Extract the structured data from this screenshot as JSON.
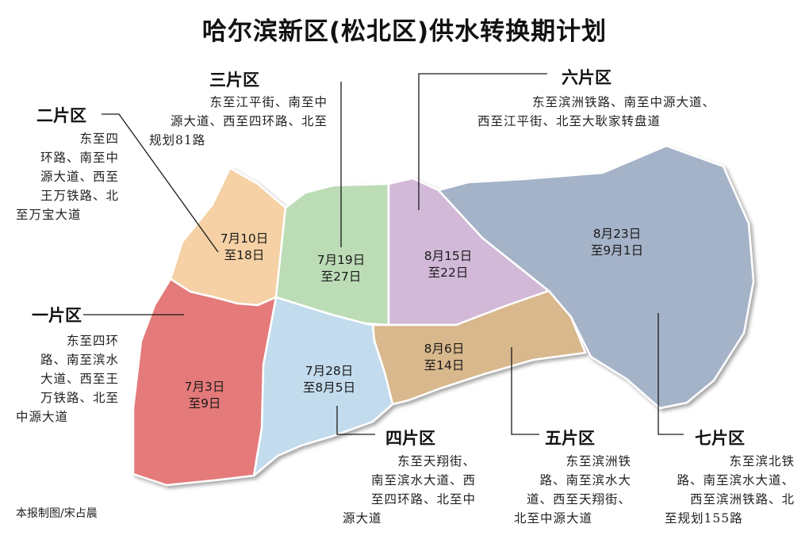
{
  "title": "哈尔滨新区(松北区)供水转换期计划",
  "credit": "本报制图/宋占晨",
  "zones": [
    {
      "key": "z1",
      "name": "一片区",
      "date_start": "7月3日",
      "date_end": "至9日",
      "color": "#e57a7a",
      "desc": [
        "东至四环",
        "路、南至滨水",
        "大道、西至王",
        "万铁路、北至",
        "中源大道"
      ]
    },
    {
      "key": "z2",
      "name": "二片区",
      "date_start": "7月10日",
      "date_end": "至18日",
      "color": "#f5d1a5",
      "desc": [
        "东至四",
        "环路、南至中",
        "源大道、西至",
        "王万铁路、北",
        "至万宝大道"
      ]
    },
    {
      "key": "z3",
      "name": "三片区",
      "date_start": "7月19日",
      "date_end": "至27日",
      "color": "#bcdcb6",
      "desc": [
        "东至江平街、南至中",
        "源大道、西至四环路、北至",
        "规划81路"
      ]
    },
    {
      "key": "z4",
      "name": "四片区",
      "date_start": "7月28日",
      "date_end": "至8月5日",
      "color": "#c3dced",
      "desc": [
        "东至天翔街、",
        "南至滨水大道、西",
        "至四环路、北至中",
        "源大道"
      ]
    },
    {
      "key": "z5",
      "name": "五片区",
      "date_start": "8月6日",
      "date_end": "至14日",
      "color": "#d8b88c",
      "desc": [
        "东至滨洲铁",
        "路、南至滨水大",
        "道、西至天翔街、",
        "北至中源大道"
      ]
    },
    {
      "key": "z6",
      "name": "六片区",
      "date_start": "8月15日",
      "date_end": "至22日",
      "color": "#d3b9d8",
      "desc": [
        "东至滨洲铁路、南至中源大道、",
        "西至江平街、北至大耿家转盘道"
      ]
    },
    {
      "key": "z7",
      "name": "七片区",
      "date_start": "8月23日",
      "date_end": "至9月1日",
      "color": "#a5b3c8",
      "desc": [
        "东至滨北铁",
        "路、南至滨水大道、",
        "西至滨洲铁路、北",
        "至规划155路"
      ]
    }
  ]
}
